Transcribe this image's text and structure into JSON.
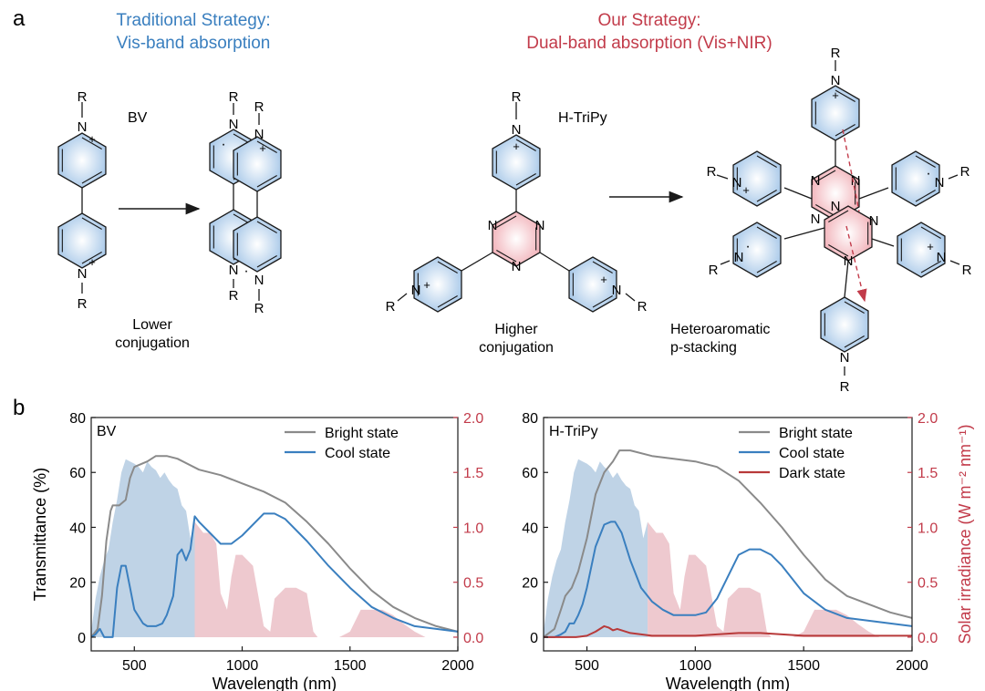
{
  "panel_a": {
    "label": "a",
    "traditional": {
      "title_line1": "Traditional Strategy:",
      "title_line2": "Vis-band absorption",
      "color": "#3a7fbf"
    },
    "ours": {
      "title_line1": "Our Strategy:",
      "title_line2": "Dual-band absorption (Vis+NIR)",
      "color": "#c23b4a"
    },
    "bv_name": "BV",
    "htripy_name": "H-TriPy",
    "caption_lower_1": "Lower",
    "caption_lower_2": "conjugation",
    "caption_higher_1": "Higher",
    "caption_higher_2": "conjugation",
    "caption_stack_1": "Heteroaromatic",
    "caption_stack_2": "p-stacking",
    "atoms": {
      "R": "R",
      "N": "N",
      "plus": "+",
      "dot": "·"
    }
  },
  "panel_b": {
    "label": "b",
    "right_axis_color": "#c23b4a"
  },
  "chart_data": [
    {
      "type": "line",
      "panel_label": "BV",
      "xlabel": "Wavelength (nm)",
      "ylabel": "Transmittance (%)",
      "y2label": "",
      "xlim": [
        300,
        2000
      ],
      "ylim": [
        -5,
        80
      ],
      "y2lim": [
        -0.125,
        2.0
      ],
      "xticks": [
        500,
        1000,
        1500,
        2000
      ],
      "yticks": [
        0,
        20,
        40,
        60,
        80
      ],
      "y2ticks": [
        0.0,
        0.5,
        1.0,
        1.5,
        2.0
      ],
      "legend_position": "top-right",
      "series": [
        {
          "name": "Bright state",
          "color": "#8a8a8a",
          "x": [
            300,
            330,
            350,
            370,
            390,
            400,
            430,
            460,
            480,
            500,
            530,
            560,
            600,
            650,
            700,
            800,
            900,
            1000,
            1100,
            1200,
            1300,
            1400,
            1500,
            1600,
            1700,
            1800,
            1900,
            2000
          ],
          "y": [
            0,
            3,
            15,
            35,
            46,
            48,
            48,
            50,
            58,
            62,
            63,
            64,
            66,
            66,
            65,
            61,
            59,
            56,
            53,
            49,
            42,
            34,
            25,
            17,
            11,
            7,
            4,
            2
          ]
        },
        {
          "name": "Cool state",
          "color": "#3a7fbf",
          "x": [
            300,
            320,
            340,
            360,
            400,
            420,
            440,
            460,
            480,
            500,
            540,
            560,
            600,
            630,
            650,
            680,
            700,
            720,
            740,
            760,
            780,
            800,
            850,
            900,
            950,
            1000,
            1100,
            1150,
            1200,
            1300,
            1400,
            1500,
            1600,
            1700,
            1800,
            1900,
            2000
          ],
          "y": [
            0,
            1,
            3,
            0,
            0,
            18,
            26,
            26,
            18,
            10,
            5,
            4,
            4,
            5,
            8,
            15,
            30,
            32,
            28,
            32,
            44,
            42,
            38,
            34,
            34,
            37,
            45,
            45,
            43,
            35,
            26,
            18,
            11,
            7,
            4,
            3,
            2
          ]
        }
      ],
      "solar_spectrum": {
        "name": "Solar irradiance",
        "vis_color": "#a9c4dd",
        "nir_color": "#e8b7bf",
        "vis_nir_split": 780,
        "x": [
          300,
          320,
          340,
          360,
          380,
          400,
          420,
          440,
          460,
          480,
          500,
          520,
          540,
          560,
          580,
          600,
          620,
          640,
          660,
          680,
          700,
          720,
          740,
          760,
          780,
          800,
          820,
          850,
          880,
          900,
          930,
          950,
          970,
          1000,
          1050,
          1100,
          1130,
          1150,
          1200,
          1250,
          1300,
          1330,
          1350,
          1400,
          1450,
          1500,
          1550,
          1600,
          1650,
          1700,
          1750,
          1800,
          1850,
          1900,
          1950,
          2000
        ],
        "y": [
          0.05,
          0.35,
          0.55,
          0.7,
          0.8,
          1.05,
          1.25,
          1.5,
          1.62,
          1.6,
          1.58,
          1.55,
          1.5,
          1.6,
          1.55,
          1.52,
          1.45,
          1.5,
          1.43,
          1.38,
          1.35,
          1.2,
          1.15,
          0.9,
          1.05,
          1.0,
          0.95,
          0.95,
          0.85,
          0.4,
          0.25,
          0.55,
          0.75,
          0.75,
          0.65,
          0.1,
          0.05,
          0.35,
          0.45,
          0.45,
          0.4,
          0.05,
          0.0,
          0.0,
          0.0,
          0.05,
          0.25,
          0.25,
          0.25,
          0.2,
          0.12,
          0.05,
          0.0,
          0.0,
          0.0,
          0.0
        ]
      }
    },
    {
      "type": "line",
      "panel_label": "H-TriPy",
      "xlabel": "Wavelength (nm)",
      "ylabel": "",
      "y2label": "Solar irradiance (W m⁻² nm⁻¹)",
      "xlim": [
        300,
        2000
      ],
      "ylim": [
        -5,
        80
      ],
      "y2lim": [
        -0.125,
        2.0
      ],
      "xticks": [
        500,
        1000,
        1500,
        2000
      ],
      "yticks": [
        0,
        20,
        40,
        60,
        80
      ],
      "y2ticks": [
        0.0,
        0.5,
        1.0,
        1.5,
        2.0
      ],
      "legend_position": "top-right",
      "series": [
        {
          "name": "Bright state",
          "color": "#8a8a8a",
          "x": [
            300,
            350,
            380,
            400,
            430,
            460,
            500,
            540,
            580,
            620,
            650,
            700,
            800,
            900,
            1000,
            1100,
            1200,
            1300,
            1400,
            1500,
            1600,
            1700,
            1800,
            1900,
            2000
          ],
          "y": [
            0,
            3,
            10,
            15,
            18,
            24,
            36,
            52,
            60,
            64,
            68,
            68,
            66,
            65,
            64,
            62,
            57,
            49,
            40,
            30,
            21,
            15,
            12,
            9,
            7
          ]
        },
        {
          "name": "Cool state",
          "color": "#3a7fbf",
          "x": [
            300,
            350,
            380,
            400,
            420,
            440,
            460,
            480,
            500,
            540,
            580,
            610,
            630,
            660,
            700,
            750,
            800,
            850,
            900,
            950,
            1000,
            1050,
            1100,
            1150,
            1200,
            1250,
            1300,
            1350,
            1400,
            1500,
            1600,
            1700,
            1800,
            1900,
            2000
          ],
          "y": [
            0,
            0,
            1,
            2,
            5,
            5,
            8,
            12,
            18,
            33,
            41,
            42,
            42,
            38,
            28,
            18,
            13,
            10,
            8,
            8,
            8,
            9,
            14,
            22,
            30,
            32,
            32,
            30,
            26,
            16,
            10,
            7,
            6,
            5,
            4
          ]
        },
        {
          "name": "Dark state",
          "color": "#b83a3a",
          "x": [
            300,
            400,
            450,
            500,
            540,
            560,
            580,
            600,
            620,
            640,
            660,
            700,
            800,
            1000,
            1100,
            1200,
            1300,
            1400,
            1500,
            1600,
            1700,
            1800,
            1900,
            2000
          ],
          "y": [
            0,
            0,
            0,
            0.5,
            2,
            3,
            4,
            3.5,
            2.5,
            3,
            2.5,
            1.5,
            0.5,
            0.5,
            1,
            1.5,
            1.5,
            1,
            0.5,
            0.5,
            0.5,
            0.5,
            0.5,
            0.5
          ]
        }
      ],
      "solar_spectrum": {
        "name": "Solar irradiance",
        "vis_color": "#a9c4dd",
        "nir_color": "#e8b7bf",
        "vis_nir_split": 780,
        "x": [
          300,
          320,
          340,
          360,
          380,
          400,
          420,
          440,
          460,
          480,
          500,
          520,
          540,
          560,
          580,
          600,
          620,
          640,
          660,
          680,
          700,
          720,
          740,
          760,
          780,
          800,
          820,
          850,
          880,
          900,
          930,
          950,
          970,
          1000,
          1050,
          1100,
          1130,
          1150,
          1200,
          1250,
          1300,
          1330,
          1350,
          1400,
          1450,
          1500,
          1550,
          1600,
          1650,
          1700,
          1750,
          1800,
          1850,
          1900,
          1950,
          2000
        ],
        "y": [
          0.05,
          0.35,
          0.55,
          0.7,
          0.8,
          1.05,
          1.25,
          1.5,
          1.62,
          1.6,
          1.58,
          1.55,
          1.5,
          1.6,
          1.55,
          1.52,
          1.45,
          1.5,
          1.43,
          1.38,
          1.35,
          1.2,
          1.15,
          0.9,
          1.05,
          1.0,
          0.95,
          0.95,
          0.85,
          0.4,
          0.25,
          0.55,
          0.75,
          0.75,
          0.65,
          0.1,
          0.05,
          0.35,
          0.45,
          0.45,
          0.4,
          0.05,
          0.0,
          0.0,
          0.0,
          0.05,
          0.25,
          0.25,
          0.25,
          0.2,
          0.12,
          0.05,
          0.0,
          0.0,
          0.0,
          0.0
        ]
      }
    }
  ]
}
